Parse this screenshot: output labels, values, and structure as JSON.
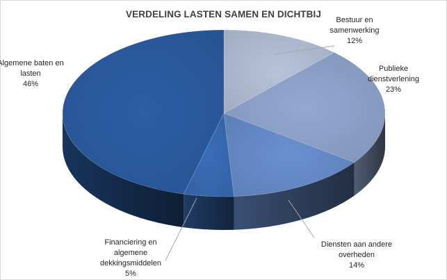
{
  "chart_data": {
    "type": "pie",
    "title": "VERDELING LASTEN SAMEN EN DICHTBIJ",
    "slices": [
      {
        "label_lines": [
          "Bestuur en",
          "samenwerking"
        ],
        "pct_label": "12%",
        "value": 12,
        "color": "#b7c3db"
      },
      {
        "label_lines": [
          "Publieke",
          "dienstverlening"
        ],
        "pct_label": "23%",
        "value": 23,
        "color": "#93a8d2"
      },
      {
        "label_lines": [
          "Diensten aan andere",
          "overheden"
        ],
        "pct_label": "14%",
        "value": 14,
        "color": "#6a90d0"
      },
      {
        "label_lines": [
          "Financiering en",
          "algemene",
          "dekkingsmiddelen"
        ],
        "pct_label": "5%",
        "value": 5,
        "color": "#3a6db8"
      },
      {
        "label_lines": [
          "Algemene baten en",
          "lasten"
        ],
        "pct_label": "46%",
        "value": 46,
        "color": "#2c5ea6"
      }
    ],
    "start_angle_deg": 0,
    "direction": "clockwise",
    "legend": "none",
    "style": "3d-pie"
  }
}
